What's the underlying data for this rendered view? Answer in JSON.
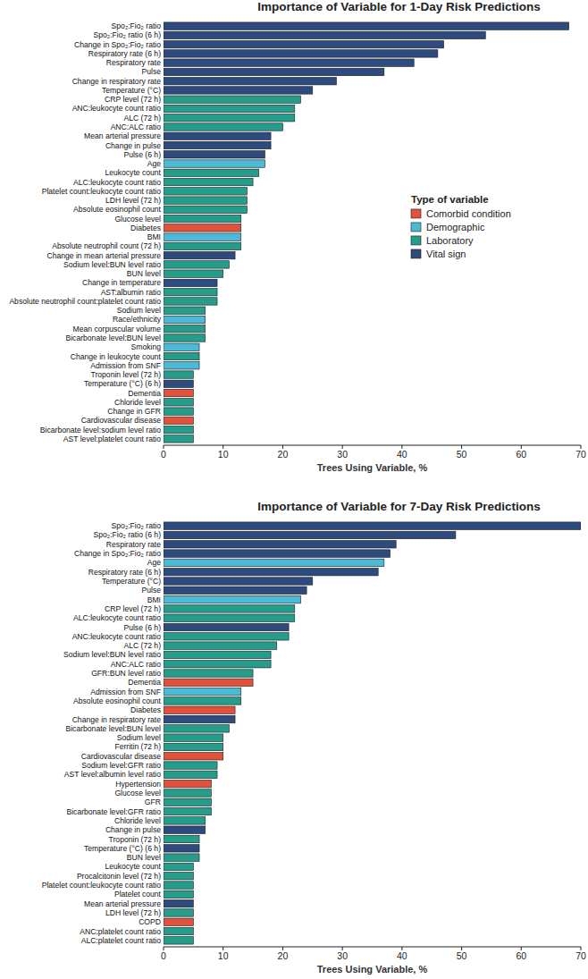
{
  "chart_data": [
    {
      "type": "bar",
      "orientation": "horizontal",
      "stacked": true,
      "legend": "right",
      "legend_title": "Type of variable",
      "title": "Importance of Variable for 1-Day Risk Predictions",
      "x_label": "Trees Using Variable, %",
      "xlim": [
        0,
        70
      ],
      "xticks": [
        0,
        10,
        20,
        30,
        40,
        50,
        60,
        70
      ],
      "categories": [
        "Spo₂:Fio₂ ratio",
        "Spo₂:Fio₂ ratio (6 h)",
        "Change in Spo₂:Fio₂ ratio",
        "Respiratory rate (6 h)",
        "Respiratory rate",
        "Pulse",
        "Change in respiratory rate",
        "Temperature (°C)",
        "CRP level (72 h)",
        "ANC:leukocyte count ratio",
        "ALC (72 h)",
        "ANC:ALC ratio",
        "Mean arterial pressure",
        "Change in pulse",
        "Pulse (6 h)",
        "Age",
        "Leukocyte count",
        "ALC:leukocyte count ratio",
        "Platelet count:leukocyte count ratio",
        "LDH level (72 h)",
        "Absolute eosinophil count",
        "Glucose level",
        "Diabetes",
        "BMI",
        "Absolute neutrophil count (72 h)",
        "Change in mean arterial pressure",
        "Sodium level:BUN level ratio",
        "BUN level",
        "Change in temperature",
        "AST:albumin ratio",
        "Absolute neutrophil count:platelet count ratio",
        "Sodium level",
        "Race/ethnicity",
        "Mean corpuscular volume",
        "Bicarbonate level:BUN level",
        "Smoking",
        "Change in leukocyte count",
        "Admission from SNF",
        "Troponin level (72 h)",
        "Temperature (°C) (6 h)",
        "Dementia",
        "Chloride level",
        "Change in GFR",
        "Cardiovascular disease",
        "Bicarbonate level:sodium level ratio",
        "AST level:platelet count ratio"
      ],
      "series": [
        {
          "name": "Comorbid condition",
          "color": "#e0523b",
          "values": [
            null,
            null,
            null,
            null,
            null,
            null,
            null,
            null,
            null,
            null,
            null,
            null,
            null,
            null,
            null,
            null,
            null,
            null,
            null,
            null,
            null,
            null,
            13,
            null,
            null,
            null,
            null,
            null,
            null,
            null,
            null,
            null,
            null,
            null,
            null,
            null,
            null,
            null,
            null,
            null,
            5,
            null,
            null,
            5,
            null,
            null
          ]
        },
        {
          "name": "Demographic",
          "color": "#4cb9d6",
          "values": [
            null,
            null,
            null,
            null,
            null,
            null,
            null,
            null,
            null,
            null,
            null,
            null,
            null,
            null,
            null,
            17,
            null,
            null,
            null,
            null,
            null,
            null,
            null,
            13,
            null,
            null,
            null,
            null,
            null,
            null,
            null,
            null,
            7,
            null,
            null,
            6,
            null,
            6,
            null,
            null,
            null,
            null,
            null,
            null,
            null,
            null
          ]
        },
        {
          "name": "Laboratory",
          "color": "#269c8b",
          "values": [
            null,
            null,
            null,
            null,
            null,
            null,
            null,
            null,
            23,
            22,
            22,
            20,
            null,
            null,
            null,
            null,
            16,
            15,
            14,
            14,
            14,
            13,
            null,
            null,
            13,
            null,
            11,
            10,
            null,
            9,
            9,
            7,
            null,
            7,
            7,
            null,
            6,
            null,
            5,
            null,
            null,
            5,
            5,
            null,
            5,
            5
          ]
        },
        {
          "name": "Vital sign",
          "color": "#2d4b7e",
          "values": [
            68,
            54,
            47,
            46,
            42,
            37,
            29,
            25,
            null,
            null,
            null,
            null,
            18,
            18,
            17,
            null,
            null,
            null,
            null,
            null,
            null,
            null,
            null,
            null,
            null,
            12,
            null,
            null,
            9,
            null,
            null,
            null,
            null,
            null,
            null,
            null,
            null,
            null,
            null,
            5,
            null,
            null,
            null,
            null,
            null,
            null
          ]
        }
      ]
    },
    {
      "type": "bar",
      "orientation": "horizontal",
      "stacked": true,
      "title": "Importance of Variable for 7-Day Risk Predictions",
      "x_label": "Trees Using Variable, %",
      "xlim": [
        0,
        70
      ],
      "xticks": [
        0,
        10,
        20,
        30,
        40,
        50,
        60,
        70
      ],
      "categories": [
        "Spo₂:Fio₂ ratio",
        "Spo₂:Fio₂ ratio (6 h)",
        "Respiratory rate",
        "Change in Spo₂:Fio₂ ratio",
        "Age",
        "Respiratory rate (6 h)",
        "Temperature (°C)",
        "Pulse",
        "BMI",
        "CRP level (72 h)",
        "ALC:leukocyte count ratio",
        "Pulse (6 h)",
        "ANC:leukocyte count ratio",
        "ALC (72 h)",
        "Sodium level:BUN level ratio",
        "ANC:ALC ratio",
        "GFR:BUN level ratio",
        "Dementia",
        "Admission from SNF",
        "Absolute eosinophil count",
        "Diabetes",
        "Change in respiratory rate",
        "Bicarbonate level:BUN level",
        "Sodium level",
        "Ferritin (72 h)",
        "Cardiovascular disease",
        "Sodium level:GFR ratio",
        "AST level:albumin level ratio",
        "Hypertension",
        "Glucose level",
        "GFR",
        "Bicarbonate level:GFR ratio",
        "Chloride level",
        "Change in pulse",
        "Troponin (72 h)",
        "Temperature (°C) (6 h)",
        "BUN level",
        "Leukocyte count",
        "Procalcitonin level (72 h)",
        "Platelet count:leukocyte count ratio",
        "Platelet count",
        "Mean arterial pressure",
        "LDH level (72 h)",
        "COPD",
        "ANC:platelet count ratio",
        "ALC:platelet count ratio"
      ],
      "series": [
        {
          "color": "#e0523b",
          "values": [
            null,
            null,
            null,
            null,
            null,
            null,
            null,
            null,
            null,
            null,
            null,
            null,
            null,
            null,
            null,
            null,
            null,
            15,
            null,
            null,
            12,
            null,
            null,
            null,
            null,
            10,
            null,
            null,
            8,
            null,
            null,
            null,
            null,
            null,
            null,
            null,
            null,
            null,
            null,
            null,
            null,
            null,
            null,
            5,
            null,
            null
          ]
        },
        {
          "color": "#4cb9d6",
          "values": [
            null,
            null,
            null,
            null,
            37,
            null,
            null,
            null,
            23,
            null,
            null,
            null,
            null,
            null,
            null,
            null,
            null,
            null,
            13,
            null,
            null,
            null,
            null,
            null,
            null,
            null,
            null,
            null,
            null,
            null,
            null,
            null,
            null,
            null,
            null,
            null,
            null,
            null,
            null,
            null,
            null,
            null,
            null,
            null,
            null,
            null
          ]
        },
        {
          "color": "#269c8b",
          "values": [
            null,
            null,
            null,
            null,
            null,
            null,
            null,
            null,
            null,
            22,
            22,
            null,
            21,
            19,
            18,
            18,
            15,
            null,
            null,
            13,
            null,
            null,
            11,
            10,
            10,
            null,
            9,
            9,
            null,
            8,
            8,
            8,
            7,
            null,
            6,
            null,
            6,
            5,
            5,
            5,
            5,
            null,
            5,
            null,
            5,
            5
          ]
        },
        {
          "color": "#2d4b7e",
          "values": [
            70,
            49,
            39,
            38,
            null,
            36,
            25,
            24,
            null,
            null,
            null,
            21,
            null,
            null,
            null,
            null,
            null,
            null,
            null,
            null,
            null,
            12,
            null,
            null,
            null,
            null,
            null,
            null,
            null,
            null,
            null,
            null,
            null,
            7,
            null,
            6,
            null,
            null,
            null,
            null,
            null,
            5,
            null,
            null,
            null,
            null
          ]
        }
      ]
    }
  ]
}
